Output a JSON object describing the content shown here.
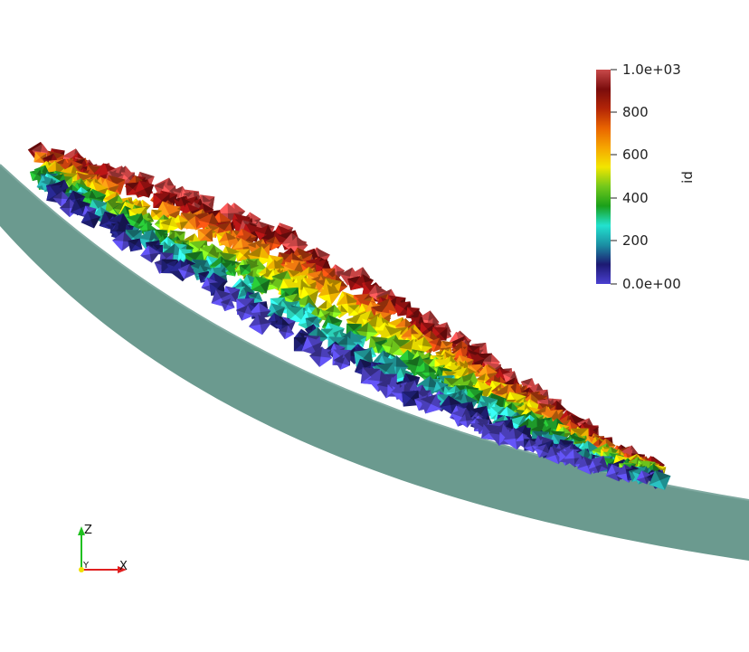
{
  "scene": {
    "description_kind": "3D particle render",
    "background": "#ffffff",
    "chute_color": "#6b9a8f",
    "particle_palette": [
      "#4a3fb8",
      "#1e1e6e",
      "#1f8f90",
      "#2bd1b8",
      "#1f9a2a",
      "#6cc21b",
      "#e6d800",
      "#f0b400",
      "#f07a10",
      "#c9420f",
      "#8b1010",
      "#c84545"
    ]
  },
  "colorbar": {
    "title": "id",
    "min_label": "0.0e+00",
    "max_label": "1.0e+03",
    "ticks": [
      "200",
      "400",
      "600",
      "800"
    ],
    "colors": [
      "#4a3fd0",
      "#1d1a72",
      "#1b8fa3",
      "#22e2cf",
      "#1aa01a",
      "#73c81b",
      "#f2e600",
      "#f6a500",
      "#e96400",
      "#b32507",
      "#7a0c0c",
      "#c94a4a"
    ]
  },
  "axes_triad": {
    "x_label": "X",
    "y_label": "Y",
    "z_label": "Z",
    "x_color": "#e02020",
    "y_color": "#f0e000",
    "z_color": "#20c020"
  }
}
